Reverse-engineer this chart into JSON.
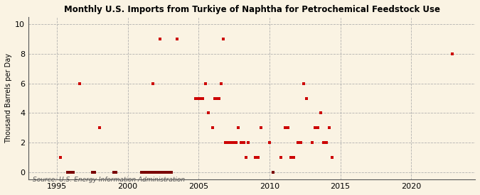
{
  "title": "Monthly U.S. Imports from Turkiye of Naphtha for Petrochemical Feedstock Use",
  "ylabel": "Thousand Barrels per Day",
  "source": "Source: U.S. Energy Information Administration",
  "xlim": [
    1993.0,
    2024.5
  ],
  "ylim": [
    -0.5,
    10.5
  ],
  "yticks": [
    0,
    2,
    4,
    6,
    8,
    10
  ],
  "xticks": [
    1995,
    2000,
    2005,
    2010,
    2015,
    2020
  ],
  "background_color": "#faf3e3",
  "scatter_color": "#cc0000",
  "zero_color": "#7a0000",
  "marker_size": 7,
  "nonzero_points": [
    [
      1995.25,
      1
    ],
    [
      1996.6,
      6
    ],
    [
      1998.0,
      3
    ],
    [
      2001.8,
      6
    ],
    [
      2002.3,
      9
    ],
    [
      2003.5,
      9
    ],
    [
      2004.8,
      5
    ],
    [
      2005.0,
      5
    ],
    [
      2005.15,
      5
    ],
    [
      2005.3,
      5
    ],
    [
      2005.5,
      6
    ],
    [
      2005.7,
      4
    ],
    [
      2006.0,
      3
    ],
    [
      2006.15,
      5
    ],
    [
      2006.3,
      5
    ],
    [
      2006.45,
      5
    ],
    [
      2006.6,
      6
    ],
    [
      2006.75,
      9
    ],
    [
      2006.9,
      2
    ],
    [
      2007.05,
      2
    ],
    [
      2007.2,
      2
    ],
    [
      2007.35,
      2
    ],
    [
      2007.5,
      2
    ],
    [
      2007.65,
      2
    ],
    [
      2007.8,
      3
    ],
    [
      2008.0,
      2
    ],
    [
      2008.2,
      2
    ],
    [
      2008.35,
      1
    ],
    [
      2008.5,
      2
    ],
    [
      2009.0,
      1
    ],
    [
      2009.2,
      1
    ],
    [
      2009.4,
      3
    ],
    [
      2010.0,
      2
    ],
    [
      2010.8,
      1
    ],
    [
      2011.1,
      3
    ],
    [
      2011.3,
      3
    ],
    [
      2011.5,
      1
    ],
    [
      2011.7,
      1
    ],
    [
      2012.0,
      2
    ],
    [
      2012.2,
      2
    ],
    [
      2012.4,
      6
    ],
    [
      2012.6,
      5
    ],
    [
      2013.0,
      2
    ],
    [
      2013.2,
      3
    ],
    [
      2013.4,
      3
    ],
    [
      2013.6,
      4
    ],
    [
      2013.8,
      2
    ],
    [
      2014.0,
      2
    ],
    [
      2014.2,
      3
    ],
    [
      2014.4,
      1
    ],
    [
      2022.9,
      8
    ]
  ],
  "zero_points": [
    [
      1995.75,
      0
    ],
    [
      1995.83,
      0
    ],
    [
      1995.92,
      0
    ],
    [
      1996.0,
      0
    ],
    [
      1996.08,
      0
    ],
    [
      1996.17,
      0
    ],
    [
      1997.5,
      0
    ],
    [
      1997.67,
      0
    ],
    [
      1999.0,
      0
    ],
    [
      1999.17,
      0
    ],
    [
      2001.0,
      0
    ],
    [
      2001.08,
      0
    ],
    [
      2001.17,
      0
    ],
    [
      2001.25,
      0
    ],
    [
      2001.33,
      0
    ],
    [
      2001.5,
      0
    ],
    [
      2001.67,
      0
    ],
    [
      2001.83,
      0
    ],
    [
      2002.0,
      0
    ],
    [
      2002.08,
      0
    ],
    [
      2002.17,
      0
    ],
    [
      2002.25,
      0
    ],
    [
      2002.33,
      0
    ],
    [
      2002.42,
      0
    ],
    [
      2002.5,
      0
    ],
    [
      2002.58,
      0
    ],
    [
      2002.67,
      0
    ],
    [
      2002.75,
      0
    ],
    [
      2002.83,
      0
    ],
    [
      2002.92,
      0
    ],
    [
      2003.0,
      0
    ],
    [
      2003.08,
      0
    ],
    [
      2010.25,
      0
    ]
  ]
}
